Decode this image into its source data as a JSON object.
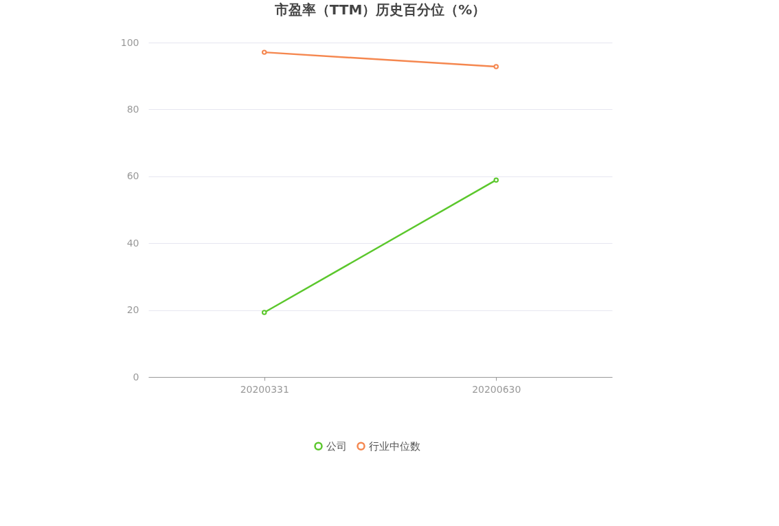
{
  "chart_data": {
    "type": "line",
    "title": "市盈率（TTM）历史百分位（%）",
    "categories": [
      "20200331",
      "20200630"
    ],
    "series": [
      {
        "name": "公司",
        "color": "#5bc72c",
        "values": [
          19.3,
          58.9
        ]
      },
      {
        "name": "行业中位数",
        "color": "#f5874f",
        "values": [
          97.1,
          92.8
        ]
      }
    ],
    "ylim": [
      0,
      100
    ],
    "yticks": [
      0,
      20,
      40,
      60,
      80,
      100
    ],
    "grid": "y",
    "legend": "bottom",
    "marker": "circle",
    "line_style": "solid"
  }
}
